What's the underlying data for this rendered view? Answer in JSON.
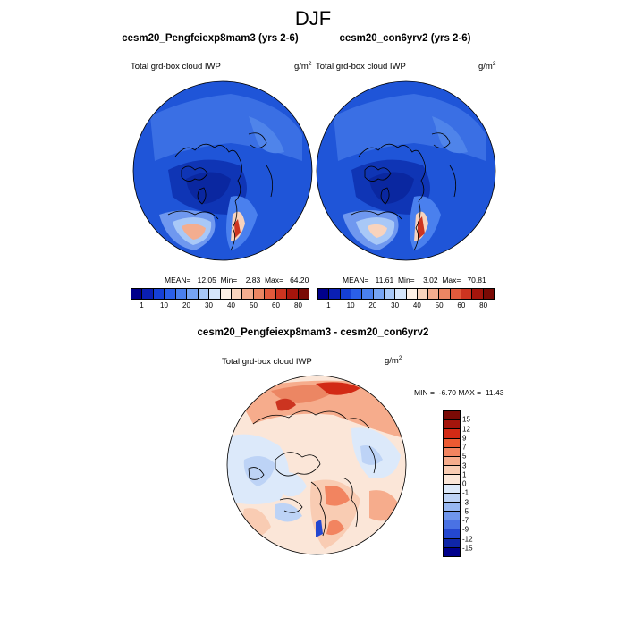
{
  "figure": {
    "title": "DJF"
  },
  "panels": [
    {
      "title": "cesm20_Pengfeiexp8mam3 (yrs 2-6)",
      "variable": "Total grd-box cloud IWP",
      "units": "g/m",
      "units_power": "2",
      "stats": "MEAN=   12.05  Min=    2.83  Max=   64.20",
      "mean": 12.05,
      "min": 2.83,
      "max": 64.2
    },
    {
      "title": "cesm20_con6yrv2 (yrs 2-6)",
      "variable": "Total grd-box cloud IWP",
      "units": "g/m",
      "units_power": "2",
      "stats": "MEAN=   11.61  Min=    3.02  Max=   70.81",
      "mean": 11.61,
      "min": 3.02,
      "max": 70.81
    },
    {
      "title": "cesm20_Pengfeiexp8mam3 - cesm20_con6yrv2",
      "variable": "Total grd-box cloud IWP",
      "units": "g/m",
      "units_power": "2",
      "stats": "MIN =  -6.70 MAX =  11.43",
      "min": -6.7,
      "max": 11.43
    }
  ],
  "colorbar_abs": {
    "colors": [
      "#00008b",
      "#0a1fb4",
      "#1540d6",
      "#2a5fe8",
      "#4a80ee",
      "#76a4f3",
      "#a8c8f7",
      "#d6e6fb",
      "#fdf0e6",
      "#f8d3bd",
      "#f3ad8f",
      "#ec8663",
      "#e35a3c",
      "#cc3420",
      "#a4150c",
      "#7a0a05"
    ],
    "labels": [
      "1",
      "10",
      "20",
      "30",
      "40",
      "50",
      "60",
      "80"
    ]
  },
  "colorbar_diff": {
    "colors": [
      "#7a0a05",
      "#a4150c",
      "#d22a15",
      "#ec5a32",
      "#f28460",
      "#f6ac8c",
      "#f9ccb3",
      "#fbe6d8",
      "#dce9fa",
      "#bdd3f6",
      "#98b8f2",
      "#6f95ec",
      "#4a72e4",
      "#2447d0",
      "#0f26a8",
      "#00008b"
    ],
    "labels": [
      "15",
      "12",
      "9",
      "7",
      "5",
      "3",
      "1",
      "0",
      "-1",
      "-3",
      "-5",
      "-7",
      "-9",
      "-12",
      "-15"
    ]
  }
}
